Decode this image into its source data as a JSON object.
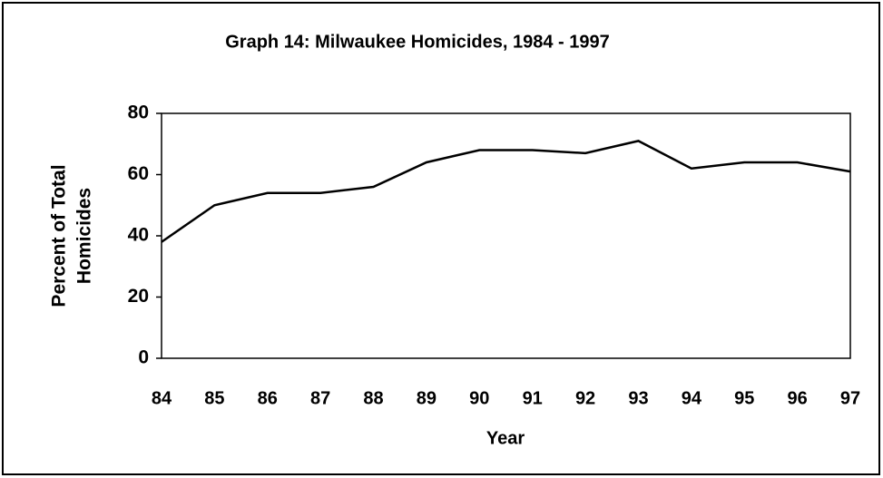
{
  "chart_data": {
    "type": "line",
    "title": "Graph 14: Milwaukee Homicides, 1984 - 1997",
    "y_label": [
      "Percent of Total",
      "Homicides"
    ],
    "x_label": "Year",
    "categories": [
      "84",
      "85",
      "86",
      "87",
      "88",
      "89",
      "90",
      "91",
      "92",
      "93",
      "94",
      "95",
      "96",
      "97"
    ],
    "values": [
      38,
      50,
      54,
      54,
      56,
      64,
      68,
      68,
      67,
      71,
      62,
      64,
      64,
      61
    ],
    "color": "#000000",
    "ylim": [
      0,
      80
    ],
    "yticks": [
      0,
      20,
      40,
      60,
      80
    ],
    "grid": false
  }
}
